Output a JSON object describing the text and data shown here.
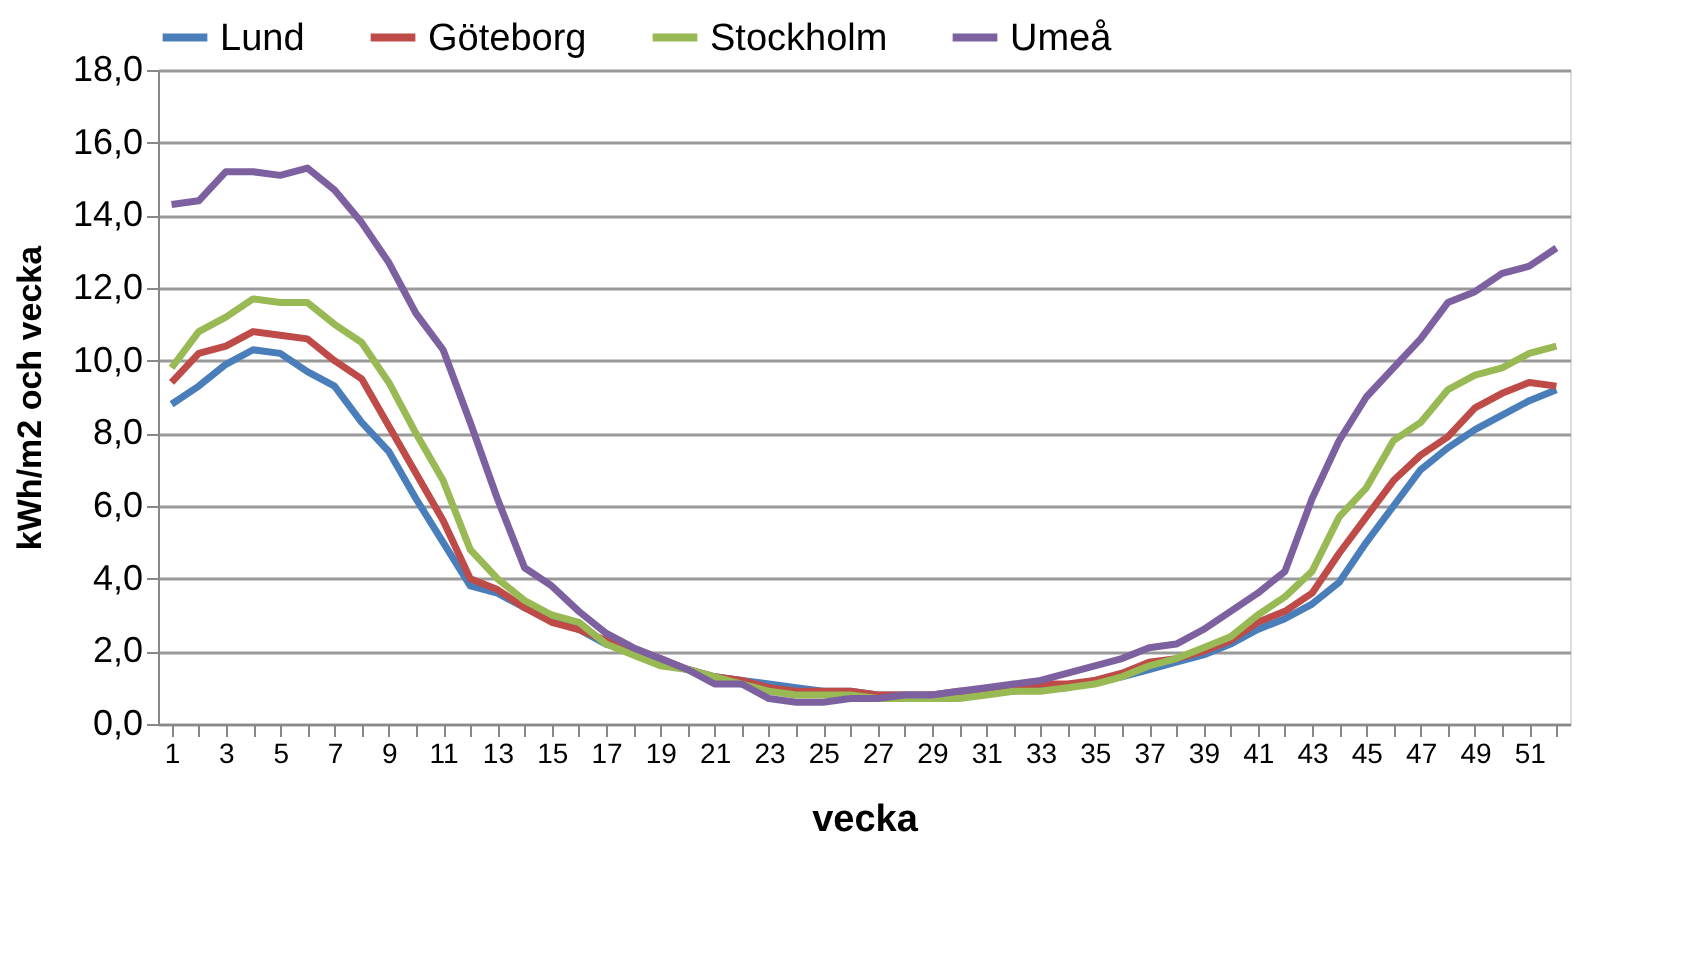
{
  "chart_data": {
    "type": "line",
    "xlabel": "vecka",
    "ylabel": "kWh/m2 och vecka",
    "x": [
      1,
      2,
      3,
      4,
      5,
      6,
      7,
      8,
      9,
      10,
      11,
      12,
      13,
      14,
      15,
      16,
      17,
      18,
      19,
      20,
      21,
      22,
      23,
      24,
      25,
      26,
      27,
      28,
      29,
      30,
      31,
      32,
      33,
      34,
      35,
      36,
      37,
      38,
      39,
      40,
      41,
      42,
      43,
      44,
      45,
      46,
      47,
      48,
      49,
      50,
      51,
      52
    ],
    "series": [
      {
        "name": "Lund",
        "color": "#4a7ebb",
        "values": [
          8.8,
          9.3,
          9.9,
          10.3,
          10.2,
          9.7,
          9.3,
          8.3,
          7.5,
          6.2,
          5.0,
          3.8,
          3.6,
          3.2,
          2.9,
          2.6,
          2.2,
          2.0,
          1.7,
          1.5,
          1.3,
          1.2,
          1.1,
          1.0,
          0.9,
          0.9,
          0.8,
          0.8,
          0.8,
          0.8,
          0.9,
          0.9,
          1.0,
          1.0,
          1.2,
          1.3,
          1.5,
          1.7,
          1.9,
          2.2,
          2.6,
          2.9,
          3.3,
          3.9,
          5.0,
          6.0,
          7.0,
          7.6,
          8.1,
          8.5,
          8.9,
          9.2
        ]
      },
      {
        "name": "Göteborg",
        "color": "#be4b48",
        "values": [
          9.4,
          10.2,
          10.4,
          10.8,
          10.7,
          10.6,
          10.0,
          9.5,
          8.2,
          6.9,
          5.6,
          4.0,
          3.7,
          3.2,
          2.8,
          2.6,
          2.3,
          2.0,
          1.8,
          1.5,
          1.3,
          1.2,
          1.0,
          0.9,
          0.9,
          0.9,
          0.8,
          0.8,
          0.8,
          0.9,
          0.9,
          1.0,
          1.1,
          1.1,
          1.2,
          1.4,
          1.7,
          1.8,
          2.0,
          2.3,
          2.8,
          3.1,
          3.6,
          4.7,
          5.7,
          6.7,
          7.4,
          7.9,
          8.7,
          9.1,
          9.4,
          9.3
        ]
      },
      {
        "name": "Stockholm",
        "color": "#98b954",
        "values": [
          9.8,
          10.8,
          11.2,
          11.7,
          11.6,
          11.6,
          11.0,
          10.5,
          9.4,
          8.0,
          6.7,
          4.8,
          4.0,
          3.4,
          3.0,
          2.8,
          2.2,
          1.9,
          1.6,
          1.5,
          1.3,
          1.1,
          0.9,
          0.8,
          0.8,
          0.8,
          0.7,
          0.7,
          0.7,
          0.7,
          0.8,
          0.9,
          0.9,
          1.0,
          1.1,
          1.3,
          1.6,
          1.8,
          2.1,
          2.4,
          3.0,
          3.5,
          4.2,
          5.7,
          6.5,
          7.8,
          8.3,
          9.2,
          9.6,
          9.8,
          10.2,
          10.4
        ]
      },
      {
        "name": "Umeå",
        "color": "#7d60a0",
        "values": [
          14.3,
          14.4,
          15.2,
          15.2,
          15.1,
          15.3,
          14.7,
          13.8,
          12.7,
          11.3,
          10.3,
          8.3,
          6.2,
          4.3,
          3.8,
          3.1,
          2.5,
          2.1,
          1.8,
          1.5,
          1.1,
          1.1,
          0.7,
          0.6,
          0.6,
          0.7,
          0.7,
          0.8,
          0.8,
          0.9,
          1.0,
          1.1,
          1.2,
          1.4,
          1.6,
          1.8,
          2.1,
          2.2,
          2.6,
          3.1,
          3.6,
          4.2,
          6.2,
          7.8,
          9.0,
          9.8,
          10.6,
          11.6,
          11.9,
          12.4,
          12.6,
          13.1
        ]
      }
    ],
    "xlim": [
      0.5,
      52.5
    ],
    "xticks": [
      1,
      {
        "value": 2,
        "label": null
      },
      3,
      {
        "value": 4,
        "label": null
      },
      5,
      {
        "value": 6,
        "label": null
      },
      7,
      {
        "value": 8,
        "label": null
      },
      9,
      {
        "value": 10,
        "label": null
      },
      11,
      {
        "value": 12,
        "label": null
      },
      13,
      {
        "value": 14,
        "label": null
      },
      15,
      {
        "value": 16,
        "label": null
      },
      17,
      {
        "value": 18,
        "label": null
      },
      19,
      {
        "value": 20,
        "label": null
      },
      21,
      {
        "value": 22,
        "label": null
      },
      23,
      {
        "value": 24,
        "label": null
      },
      25,
      {
        "value": 26,
        "label": null
      },
      27,
      {
        "value": 28,
        "label": null
      },
      29,
      {
        "value": 30,
        "label": null
      },
      31,
      {
        "value": 32,
        "label": null
      },
      33,
      {
        "value": 34,
        "label": null
      },
      35,
      {
        "value": 36,
        "label": null
      },
      37,
      {
        "value": 38,
        "label": null
      },
      39,
      {
        "value": 40,
        "label": null
      },
      41,
      {
        "value": 42,
        "label": null
      },
      43,
      {
        "value": 44,
        "label": null
      },
      45,
      {
        "value": 46,
        "label": null
      },
      47,
      {
        "value": 48,
        "label": null
      },
      49,
      {
        "value": 50,
        "label": null
      },
      51,
      {
        "value": 52,
        "label": null
      }
    ],
    "ylim": [
      0,
      18
    ],
    "yticks": [
      {
        "value": 0,
        "label": "0,0"
      },
      {
        "value": 2,
        "label": "2,0"
      },
      {
        "value": 4,
        "label": "4,0"
      },
      {
        "value": 6,
        "label": "6,0"
      },
      {
        "value": 8,
        "label": "8,0"
      },
      {
        "value": 10,
        "label": "10,0"
      },
      {
        "value": 12,
        "label": "12,0"
      },
      {
        "value": 14,
        "label": "14,0"
      },
      {
        "value": 16,
        "label": "16,0"
      },
      {
        "value": 18,
        "label": "18,0"
      }
    ],
    "grid": "y",
    "legend": "top",
    "marker": "none",
    "line_style": "solid"
  }
}
